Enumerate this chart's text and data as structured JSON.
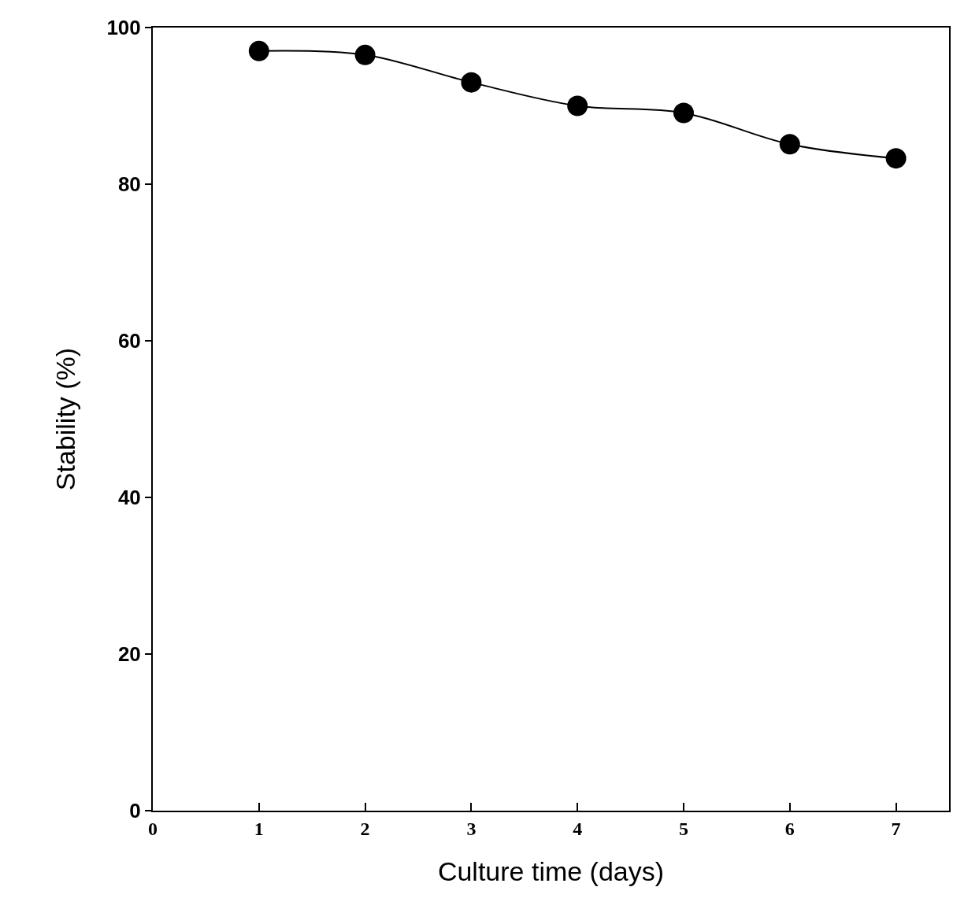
{
  "chart_data": {
    "type": "line",
    "xlabel": "Culture time (days)",
    "ylabel": "Stability (%)",
    "x": [
      1,
      2,
      3,
      4,
      5,
      6,
      7
    ],
    "series": [
      {
        "color": "#000000",
        "values": [
          97.0,
          96.5,
          93.0,
          90.0,
          89.1,
          85.1,
          83.3
        ]
      }
    ],
    "xlim": [
      0,
      7.5
    ],
    "xticks": [
      0,
      1,
      2,
      3,
      4,
      5,
      6,
      7
    ],
    "ylim": [
      0,
      100
    ],
    "yticks": [
      0,
      20,
      40,
      60,
      80,
      100
    ],
    "grid": false,
    "marker": "circle",
    "line_style": "solid"
  }
}
